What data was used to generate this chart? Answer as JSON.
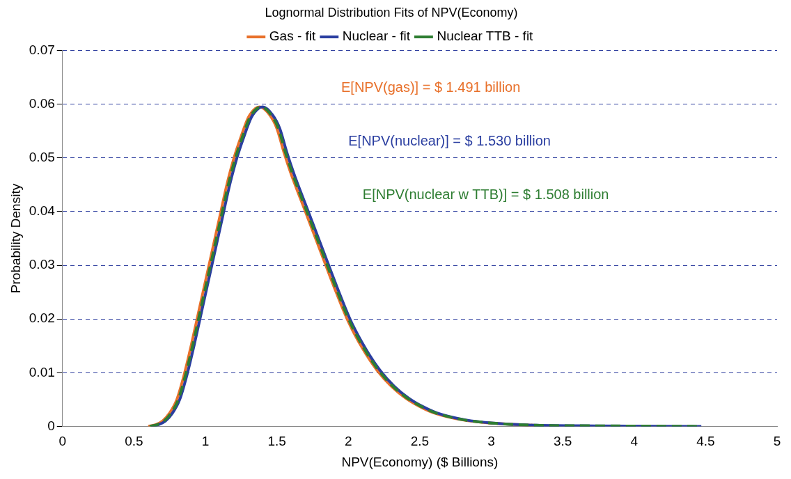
{
  "chart_data": {
    "type": "line",
    "title": "Lognormal Distribution Fits of NPV(Economy)",
    "xlabel": "NPV(Economy) ($ Billions)",
    "ylabel": "Probability Density",
    "xlim": [
      0,
      5
    ],
    "xticks": [
      0,
      0.5,
      1,
      1.5,
      2,
      2.5,
      3,
      3.5,
      4,
      4.5,
      5
    ],
    "ylim": [
      0,
      0.07
    ],
    "yticks": [
      0,
      0.01,
      0.02,
      0.03,
      0.04,
      0.05,
      0.06,
      0.07
    ],
    "grid": "y",
    "legend": "top",
    "marker": "none",
    "annotations": [
      "E[NPV(gas)] = $ 1.491 billion",
      "E[NPV(nuclear)] = $ 1.530 billion",
      "E[NPV(nuclear w TTB)] = $ 1.508 billion"
    ],
    "series": [
      {
        "name": "Gas - fit",
        "color": "#e8702a",
        "line_style": "solid",
        "x": [
          0.6,
          0.65,
          0.7,
          0.75,
          0.8,
          0.85,
          0.9,
          0.95,
          1.0,
          1.05,
          1.1,
          1.15,
          1.2,
          1.25,
          1.3,
          1.35,
          1.38,
          1.45,
          1.5,
          1.55,
          1.6,
          1.7,
          1.8,
          1.9,
          2.0,
          2.1,
          2.2,
          2.3,
          2.4,
          2.5,
          2.6,
          2.8,
          3.0,
          3.3
        ],
        "values": [
          0,
          0.0003,
          0.001,
          0.0025,
          0.005,
          0.0095,
          0.015,
          0.021,
          0.027,
          0.033,
          0.039,
          0.045,
          0.05,
          0.054,
          0.0575,
          0.0592,
          0.0595,
          0.058,
          0.0555,
          0.051,
          0.047,
          0.04,
          0.033,
          0.026,
          0.0195,
          0.0145,
          0.0105,
          0.0075,
          0.0053,
          0.0037,
          0.0025,
          0.0012,
          0.0006,
          0.0002
        ]
      },
      {
        "name": "Nuclear - fit",
        "color": "#2a3ea0",
        "line_style": "solid",
        "x": [
          0.62,
          0.67,
          0.72,
          0.77,
          0.82,
          0.87,
          0.92,
          0.97,
          1.02,
          1.07,
          1.12,
          1.17,
          1.22,
          1.27,
          1.32,
          1.37,
          1.4,
          1.47,
          1.52,
          1.57,
          1.62,
          1.72,
          1.82,
          1.92,
          2.02,
          2.12,
          2.22,
          2.32,
          2.42,
          2.52,
          2.62,
          2.82,
          3.02,
          3.32,
          3.72,
          4.47
        ],
        "values": [
          0,
          0.0003,
          0.001,
          0.0025,
          0.005,
          0.0095,
          0.015,
          0.021,
          0.027,
          0.033,
          0.039,
          0.045,
          0.05,
          0.054,
          0.0575,
          0.0592,
          0.0595,
          0.058,
          0.0555,
          0.051,
          0.047,
          0.04,
          0.033,
          0.026,
          0.0195,
          0.0145,
          0.0105,
          0.0075,
          0.0053,
          0.0037,
          0.0025,
          0.0012,
          0.0006,
          0.0002,
          0.0001,
          0
        ]
      },
      {
        "name": "Nuclear TTB - fit",
        "color": "#2e7d32",
        "line_style": "dashed",
        "x": [
          0.61,
          0.66,
          0.71,
          0.76,
          0.81,
          0.86,
          0.91,
          0.96,
          1.01,
          1.06,
          1.11,
          1.16,
          1.21,
          1.26,
          1.31,
          1.36,
          1.39,
          1.46,
          1.51,
          1.56,
          1.61,
          1.71,
          1.81,
          1.91,
          2.01,
          2.11,
          2.21,
          2.31,
          2.41,
          2.51,
          2.61,
          2.81,
          3.01,
          3.31,
          3.71,
          4.46
        ],
        "values": [
          0,
          0.0003,
          0.001,
          0.0025,
          0.005,
          0.0095,
          0.015,
          0.021,
          0.027,
          0.033,
          0.039,
          0.045,
          0.05,
          0.054,
          0.0575,
          0.0592,
          0.0595,
          0.058,
          0.0555,
          0.051,
          0.047,
          0.04,
          0.033,
          0.026,
          0.0195,
          0.0145,
          0.0105,
          0.0075,
          0.0053,
          0.0037,
          0.0025,
          0.0012,
          0.0006,
          0.0002,
          0.0001,
          0
        ]
      }
    ]
  }
}
